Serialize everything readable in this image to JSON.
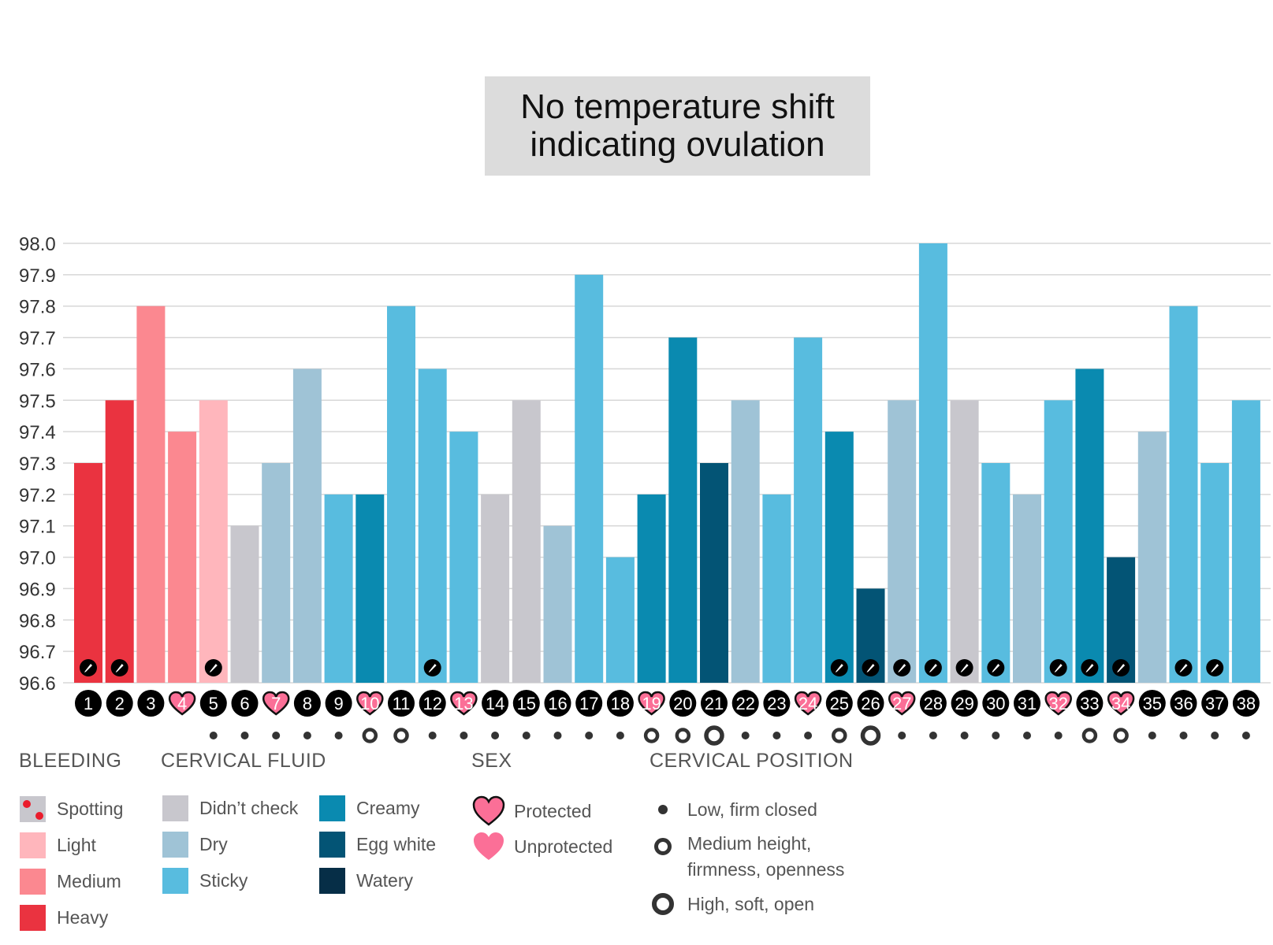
{
  "title": "No temperature shift indicating ovulation",
  "colors": {
    "spotting": "#c8c7cd",
    "light": "#ffb6bc",
    "medium": "#fb8890",
    "heavy": "#ea3340",
    "didnt_check": "#c8c7cd",
    "dry": "#9fc3d6",
    "sticky": "#58bcdf",
    "creamy": "#0a8ab0",
    "egg_white": "#035475",
    "watery": "#062e47",
    "heart": "#fb6f97",
    "day_circle": "#000000"
  },
  "legend": {
    "bleeding": {
      "heading": "BLEEDING",
      "items": [
        "Spotting",
        "Light",
        "Medium",
        "Heavy"
      ]
    },
    "cervical_fluid": {
      "heading": "CERVICAL FLUID",
      "items": [
        "Didn’t check",
        "Dry",
        "Sticky",
        "Creamy",
        "Egg white",
        "Watery"
      ]
    },
    "sex": {
      "heading": "SEX",
      "items": [
        "Protected",
        "Unprotected"
      ]
    },
    "cervical_position": {
      "heading": "CERVICAL POSITION",
      "items": [
        "Low, firm closed",
        "Medium height,",
        "firmness, openness",
        "High, soft, open"
      ]
    }
  },
  "chart_data": {
    "type": "bar",
    "ylim": [
      96.6,
      98.0
    ],
    "yticks": [
      "96.6",
      "96.7",
      "96.8",
      "96.9",
      "97.0",
      "97.1",
      "97.2",
      "97.3",
      "97.4",
      "97.5",
      "97.6",
      "97.7",
      "97.8",
      "97.9",
      "98.0"
    ],
    "grid": true,
    "x": [
      1,
      2,
      3,
      4,
      5,
      6,
      7,
      8,
      9,
      10,
      11,
      12,
      13,
      14,
      15,
      16,
      17,
      18,
      19,
      20,
      21,
      22,
      23,
      24,
      25,
      26,
      27,
      28,
      29,
      30,
      31,
      32,
      33,
      34,
      35,
      36,
      37,
      38
    ],
    "values": [
      97.3,
      97.5,
      97.8,
      97.4,
      97.5,
      97.1,
      97.3,
      97.6,
      97.2,
      97.2,
      97.8,
      97.6,
      97.4,
      97.2,
      97.5,
      97.1,
      97.9,
      97.0,
      97.2,
      97.7,
      97.3,
      97.5,
      97.2,
      97.7,
      97.4,
      96.9,
      97.5,
      98.0,
      97.5,
      97.3,
      97.2,
      97.5,
      97.6,
      97.0,
      97.4,
      97.8,
      97.3,
      97.5
    ],
    "status": [
      "heavy",
      "heavy",
      "medium",
      "medium",
      "light",
      "didnt_check",
      "dry",
      "dry",
      "sticky",
      "creamy",
      "sticky",
      "sticky",
      "sticky",
      "didnt_check",
      "didnt_check",
      "dry",
      "sticky",
      "sticky",
      "creamy",
      "creamy",
      "egg_white",
      "dry",
      "sticky",
      "sticky",
      "creamy",
      "egg_white",
      "dry",
      "sticky",
      "didnt_check",
      "sticky",
      "dry",
      "sticky",
      "creamy",
      "egg_white",
      "dry",
      "sticky",
      "sticky",
      "sticky"
    ],
    "notes_days": [
      1,
      2,
      5,
      12,
      25,
      26,
      27,
      28,
      29,
      30,
      32,
      33,
      34,
      36,
      37
    ],
    "sex_days": [
      4,
      7,
      10,
      13,
      19,
      24,
      27,
      32,
      34
    ],
    "cervical_position": [
      null,
      null,
      null,
      null,
      "low",
      "low",
      "low",
      "low",
      "low",
      "medium",
      "medium",
      "low",
      "low",
      "low",
      "low",
      "low",
      "low",
      "low",
      "medium",
      "medium",
      "high",
      "low",
      "low",
      "low",
      "medium",
      "high",
      "low",
      "low",
      "low",
      "low",
      "low",
      "low",
      "medium",
      "medium",
      "low",
      "low",
      "low",
      "low"
    ]
  }
}
